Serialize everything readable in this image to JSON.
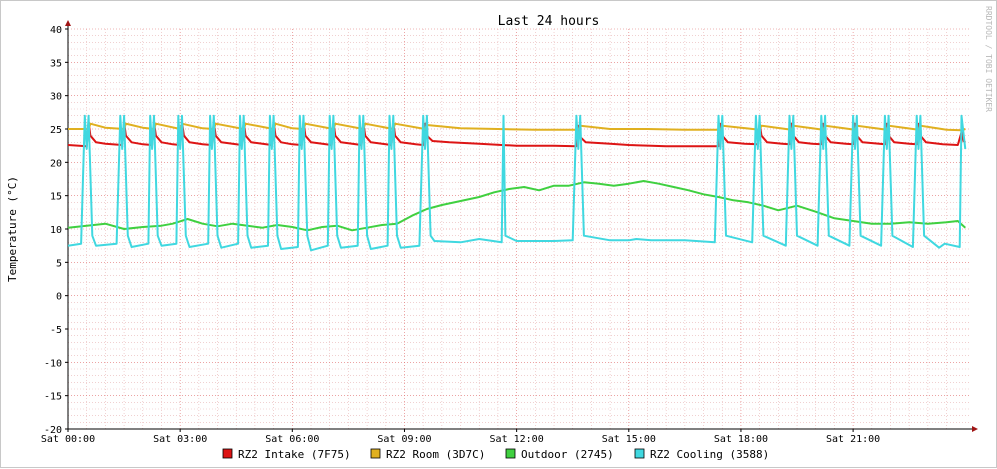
{
  "colors": {
    "background": "#ffffff",
    "minor_grid": "#e8b4b4",
    "major_grid": "#e06c6c",
    "axis": "#000000",
    "arrow": "#a01414",
    "watermark": "#b8b8b8"
  },
  "chart_data": {
    "type": "line",
    "title": "Last 24 hours",
    "ylabel": "Temperature (°C)",
    "xlabel": "",
    "watermark": "RRDTOOL / TOBI OETIKER",
    "ylim": [
      -20,
      40
    ],
    "y_ticks": [
      40,
      35,
      30,
      25,
      20,
      15,
      10,
      5,
      0,
      -5,
      -10,
      -15,
      -20
    ],
    "xlim_hours": [
      0,
      24.1
    ],
    "x_tick_labels": [
      "Sat 00:00",
      "Sat 03:00",
      "Sat 06:00",
      "Sat 09:00",
      "Sat 12:00",
      "Sat 15:00",
      "Sat 18:00",
      "Sat 21:00"
    ],
    "x_tick_hours": [
      0,
      3,
      6,
      9,
      12,
      15,
      18,
      21
    ],
    "grid": true,
    "legend_position": "bottom",
    "series": [
      {
        "name": "RZ2 Intake (7F75)",
        "color": "#dd1414",
        "x": [
          0,
          0.5,
          0.55,
          0.6,
          0.75,
          1.0,
          1.45,
          1.5,
          1.55,
          1.7,
          2.0,
          2.25,
          2.3,
          2.35,
          2.5,
          2.8,
          3.0,
          3.05,
          3.1,
          3.25,
          3.6,
          3.85,
          3.9,
          3.95,
          4.1,
          4.5,
          4.65,
          4.7,
          4.75,
          4.9,
          5.3,
          5.45,
          5.5,
          5.55,
          5.7,
          6.0,
          6.25,
          6.3,
          6.35,
          6.5,
          6.9,
          7.05,
          7.1,
          7.15,
          7.3,
          7.7,
          7.85,
          7.9,
          7.95,
          8.1,
          8.5,
          8.65,
          8.7,
          8.75,
          8.9,
          9.3,
          9.5,
          9.55,
          9.6,
          9.75,
          10.2,
          11.0,
          11.6,
          12.0,
          12.5,
          13.0,
          13.6,
          13.65,
          13.7,
          13.85,
          14.5,
          15.0,
          15.6,
          16.0,
          16.8,
          17.4,
          17.45,
          17.5,
          17.65,
          18.1,
          18.45,
          18.5,
          18.55,
          18.7,
          19.1,
          19.3,
          19.35,
          19.4,
          19.55,
          19.9,
          20.15,
          20.2,
          20.25,
          20.4,
          20.8,
          21.0,
          21.05,
          21.1,
          21.25,
          21.7,
          21.85,
          21.9,
          21.95,
          22.1,
          22.5,
          22.7,
          22.75,
          22.8,
          22.95,
          23.4,
          23.8,
          23.9,
          23.95,
          24.0
        ],
        "y": [
          22.6,
          22.4,
          26.0,
          24.0,
          23.0,
          22.8,
          22.6,
          26.0,
          24.0,
          23.0,
          22.7,
          22.6,
          26.0,
          24.0,
          23.0,
          22.7,
          22.6,
          26.0,
          24.0,
          23.0,
          22.7,
          22.6,
          26.0,
          24.0,
          23.0,
          22.7,
          22.6,
          26.0,
          24.0,
          23.0,
          22.7,
          22.6,
          26.0,
          24.0,
          23.0,
          22.7,
          22.6,
          26.0,
          24.0,
          23.0,
          22.7,
          22.6,
          26.0,
          24.0,
          23.0,
          22.7,
          22.6,
          26.0,
          24.0,
          23.0,
          22.7,
          22.6,
          26.0,
          24.0,
          23.0,
          22.7,
          22.6,
          25.8,
          24.0,
          23.2,
          23.0,
          22.8,
          22.6,
          22.5,
          22.5,
          22.5,
          22.4,
          25.5,
          23.8,
          23.0,
          22.8,
          22.6,
          22.5,
          22.4,
          22.4,
          22.4,
          25.8,
          24.0,
          23.0,
          22.8,
          22.7,
          25.8,
          24.0,
          23.0,
          22.8,
          22.7,
          25.8,
          24.0,
          23.0,
          22.8,
          22.7,
          25.8,
          24.0,
          23.0,
          22.8,
          22.7,
          25.8,
          24.0,
          23.0,
          22.8,
          22.7,
          25.8,
          24.0,
          23.0,
          22.8,
          22.7,
          25.8,
          24.0,
          23.0,
          22.7,
          22.6,
          24.5,
          23.2,
          23.0
        ]
      },
      {
        "name": "RZ2 Room (3D7C)",
        "color": "#e0b020",
        "x": [
          0,
          0.55,
          0.6,
          1.0,
          1.5,
          1.55,
          2.0,
          2.3,
          2.35,
          3.0,
          3.05,
          3.6,
          3.9,
          3.95,
          4.7,
          4.75,
          5.5,
          5.55,
          6.0,
          6.3,
          6.35,
          7.1,
          7.15,
          7.9,
          7.95,
          8.7,
          8.75,
          9.55,
          9.6,
          10.5,
          11.5,
          12.5,
          13.65,
          13.7,
          14.5,
          15.5,
          16.5,
          17.45,
          17.5,
          18.5,
          18.55,
          19.35,
          19.4,
          20.2,
          20.25,
          21.05,
          21.1,
          21.9,
          21.95,
          22.75,
          22.8,
          23.5,
          23.9,
          24.0
        ],
        "y": [
          25.0,
          25.0,
          25.8,
          25.2,
          25.0,
          25.8,
          25.2,
          25.0,
          25.8,
          25.0,
          25.8,
          25.1,
          25.0,
          25.8,
          25.0,
          25.8,
          25.0,
          25.8,
          25.1,
          25.0,
          25.8,
          25.0,
          25.8,
          25.0,
          25.8,
          25.0,
          25.8,
          25.0,
          25.6,
          25.1,
          25.0,
          24.9,
          24.9,
          25.5,
          25.0,
          25.0,
          24.9,
          24.9,
          25.5,
          24.9,
          25.5,
          24.9,
          25.5,
          24.9,
          25.5,
          24.9,
          25.5,
          24.9,
          25.5,
          24.9,
          25.5,
          24.9,
          24.8,
          25.0
        ]
      },
      {
        "name": "Outdoor (2745)",
        "color": "#40d040",
        "x": [
          0,
          0.5,
          1.0,
          1.5,
          2.0,
          2.5,
          2.8,
          3.2,
          3.6,
          4.0,
          4.4,
          4.8,
          5.2,
          5.6,
          6.0,
          6.4,
          6.8,
          7.2,
          7.6,
          8.0,
          8.4,
          8.8,
          9.2,
          9.6,
          10.0,
          10.5,
          11.0,
          11.4,
          11.8,
          12.2,
          12.6,
          13.0,
          13.4,
          13.8,
          14.2,
          14.6,
          15.0,
          15.4,
          15.8,
          16.2,
          16.6,
          17.0,
          17.4,
          17.8,
          18.2,
          18.6,
          19.0,
          19.5,
          20.0,
          20.5,
          21.0,
          21.5,
          22.0,
          22.5,
          23.0,
          23.5,
          23.8,
          24.0
        ],
        "y": [
          10.2,
          10.5,
          10.8,
          10.0,
          10.3,
          10.5,
          10.8,
          11.5,
          10.8,
          10.4,
          10.8,
          10.5,
          10.2,
          10.6,
          10.3,
          9.8,
          10.3,
          10.5,
          9.8,
          10.2,
          10.6,
          10.8,
          12.0,
          13.0,
          13.6,
          14.2,
          14.8,
          15.5,
          16.0,
          16.3,
          15.8,
          16.5,
          16.5,
          17.0,
          16.8,
          16.5,
          16.8,
          17.2,
          16.8,
          16.3,
          15.8,
          15.2,
          14.8,
          14.3,
          14.0,
          13.5,
          12.8,
          13.5,
          12.6,
          11.6,
          11.2,
          10.8,
          10.8,
          11.0,
          10.8,
          11.0,
          11.2,
          10.2
        ]
      },
      {
        "name": "RZ2 Cooling (3588)",
        "color": "#40d8e0",
        "x": [
          0,
          0.35,
          0.45,
          0.5,
          0.55,
          0.65,
          0.75,
          1.3,
          1.4,
          1.45,
          1.5,
          1.6,
          1.7,
          2.15,
          2.2,
          2.25,
          2.3,
          2.4,
          2.5,
          2.9,
          2.95,
          3.0,
          3.05,
          3.15,
          3.25,
          3.75,
          3.8,
          3.85,
          3.9,
          4.0,
          4.1,
          4.55,
          4.6,
          4.65,
          4.7,
          4.8,
          4.9,
          5.35,
          5.4,
          5.45,
          5.5,
          5.6,
          5.7,
          6.15,
          6.2,
          6.25,
          6.3,
          6.4,
          6.5,
          6.95,
          7.0,
          7.05,
          7.1,
          7.2,
          7.3,
          7.75,
          7.8,
          7.85,
          7.9,
          8.0,
          8.1,
          8.55,
          8.6,
          8.65,
          8.7,
          8.8,
          8.9,
          9.4,
          9.5,
          9.55,
          9.6,
          9.7,
          9.8,
          10.5,
          11.0,
          11.6,
          11.65,
          11.7,
          12.0,
          12.6,
          13.0,
          13.5,
          13.6,
          13.65,
          13.7,
          13.8,
          14.5,
          15.0,
          15.2,
          15.6,
          16.5,
          17.3,
          17.4,
          17.45,
          17.5,
          17.6,
          18.3,
          18.4,
          18.45,
          18.5,
          18.6,
          19.2,
          19.3,
          19.35,
          19.4,
          19.5,
          20.05,
          20.15,
          20.2,
          20.25,
          20.35,
          20.9,
          21.0,
          21.05,
          21.1,
          21.2,
          21.75,
          21.85,
          21.9,
          21.95,
          22.05,
          22.6,
          22.7,
          22.75,
          22.8,
          22.9,
          23.3,
          23.45,
          23.85,
          23.9,
          24.0
        ],
        "y": [
          7.5,
          7.8,
          27.0,
          22.0,
          27.0,
          9.0,
          7.5,
          7.8,
          27.0,
          22.0,
          27.0,
          9.0,
          7.3,
          7.8,
          27.0,
          22.0,
          27.0,
          9.0,
          7.5,
          7.8,
          27.0,
          22.0,
          27.0,
          9.0,
          7.3,
          7.8,
          27.0,
          22.0,
          27.0,
          9.0,
          7.2,
          7.8,
          27.0,
          22.0,
          27.0,
          9.0,
          7.2,
          7.5,
          27.0,
          22.0,
          27.0,
          9.0,
          7.0,
          7.3,
          27.0,
          22.0,
          27.0,
          9.0,
          6.8,
          7.5,
          27.0,
          22.0,
          27.0,
          9.0,
          7.2,
          7.5,
          27.0,
          22.0,
          27.0,
          9.0,
          7.0,
          7.5,
          27.0,
          22.0,
          27.0,
          9.0,
          7.2,
          7.5,
          27.0,
          22.0,
          27.0,
          9.0,
          8.2,
          8.0,
          8.5,
          8.0,
          27.0,
          9.0,
          8.2,
          8.2,
          8.2,
          8.3,
          27.0,
          22.0,
          27.0,
          9.0,
          8.3,
          8.3,
          8.5,
          8.3,
          8.3,
          8.0,
          27.0,
          22.0,
          27.0,
          9.0,
          8.0,
          27.0,
          22.0,
          27.0,
          9.0,
          7.5,
          27.0,
          22.0,
          27.0,
          9.0,
          7.5,
          27.0,
          22.0,
          27.0,
          9.0,
          7.5,
          27.0,
          22.0,
          27.0,
          9.0,
          7.5,
          27.0,
          22.0,
          27.0,
          9.0,
          7.3,
          27.0,
          22.0,
          27.0,
          9.0,
          7.2,
          7.8,
          7.3,
          27.0,
          22.0
        ]
      }
    ]
  }
}
